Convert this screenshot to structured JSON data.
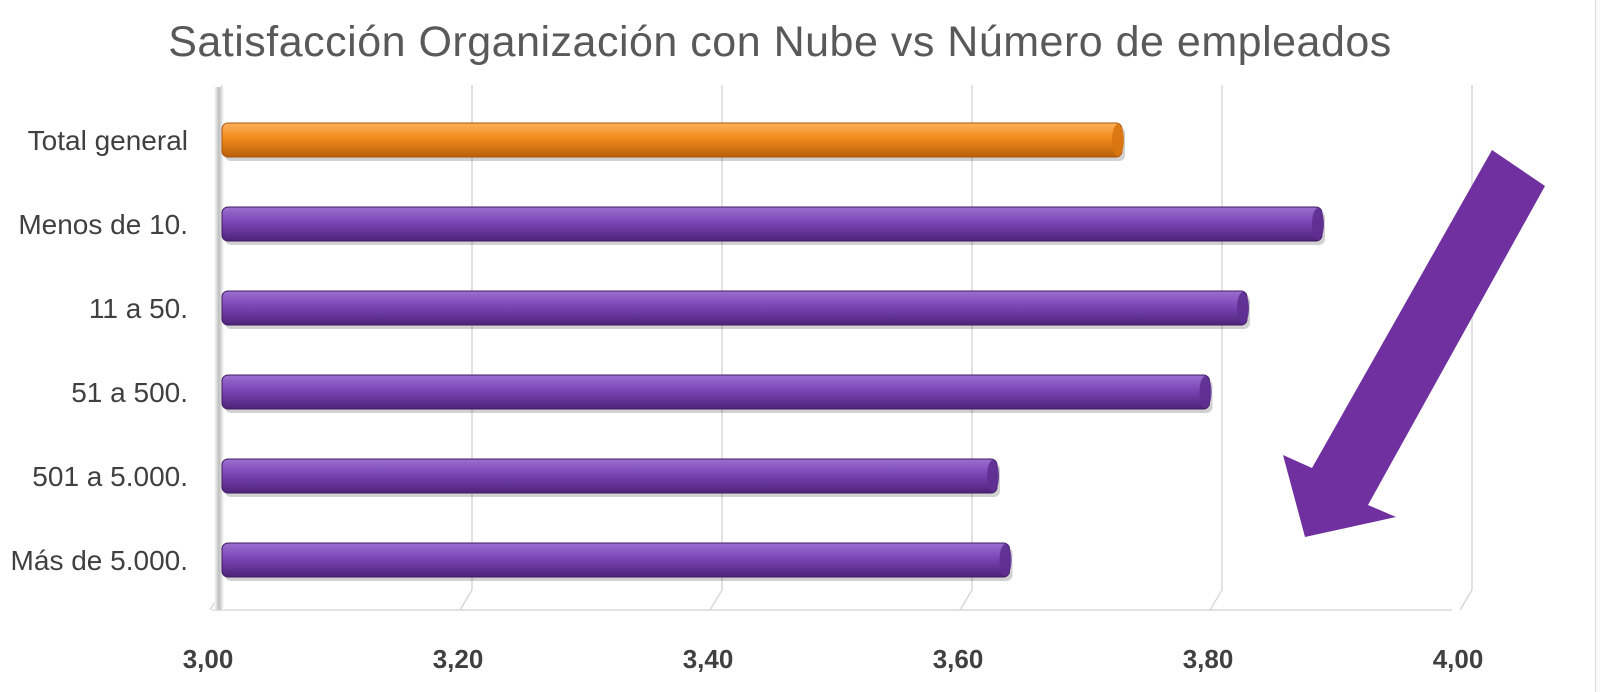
{
  "chart_data": {
    "type": "bar",
    "orientation": "horizontal",
    "title": "Satisfacción Organización con Nube vs Número de empleados",
    "categories": [
      "Total general",
      "Menos de 10.",
      "11 a 50.",
      "51 a 500.",
      "501 a 5.000.",
      "Más de 5.000."
    ],
    "values": [
      3.72,
      3.88,
      3.82,
      3.79,
      3.62,
      3.63
    ],
    "xlim": [
      3.0,
      4.0
    ],
    "x_ticks": [
      3.0,
      3.2,
      3.4,
      3.6,
      3.8,
      4.0
    ],
    "x_tick_labels": [
      "3,00",
      "3,20",
      "3,40",
      "3,60",
      "3,80",
      "4,00"
    ],
    "grid": true,
    "bar_colors": [
      "#f08a1c",
      "#7030a0",
      "#7030a0",
      "#7030a0",
      "#7030a0",
      "#7030a0"
    ],
    "annotation": "downward-trend-arrow",
    "arrow_color": "#7030a0"
  }
}
